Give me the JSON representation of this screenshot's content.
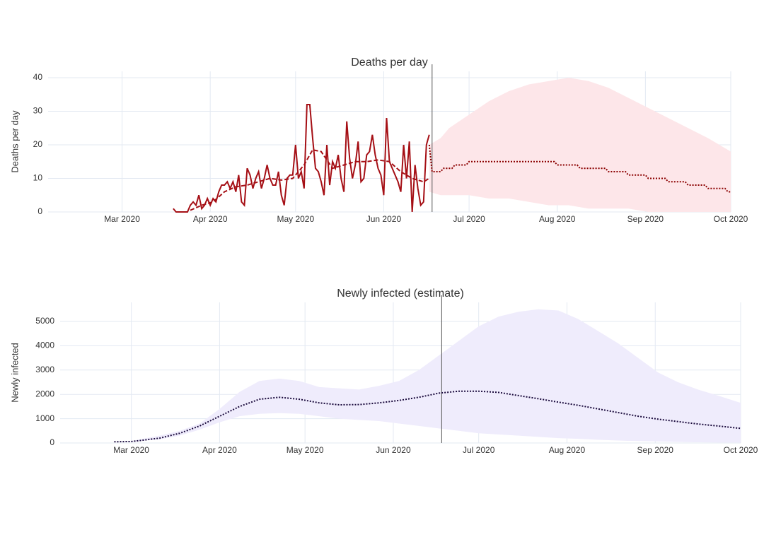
{
  "chart_data": [
    {
      "type": "line",
      "title": "Deaths per day",
      "y_label": "Deaths per day",
      "xlim": [
        34,
        274
      ],
      "xticks": [
        {
          "value": 60,
          "label": "Mar 2020"
        },
        {
          "value": 91,
          "label": "Apr 2020"
        },
        {
          "value": 121,
          "label": "May 2020"
        },
        {
          "value": 152,
          "label": "Jun 2020"
        },
        {
          "value": 182,
          "label": "Jul 2020"
        },
        {
          "value": 213,
          "label": "Aug 2020"
        },
        {
          "value": 244,
          "label": "Sep 2020"
        },
        {
          "value": 274,
          "label": "Oct 2020"
        }
      ],
      "ylim": [
        0,
        41.9
      ],
      "yticks": [
        0,
        10,
        20,
        30,
        40
      ],
      "grid": true,
      "vline": 169,
      "vline_color": "#555555",
      "band": {
        "color": "#fde6e9",
        "x": [
          168,
          172,
          175,
          182,
          189,
          196,
          203,
          210,
          217,
          224,
          231,
          238,
          245,
          252,
          259,
          266,
          274
        ],
        "lower": [
          6,
          5,
          5,
          5,
          4,
          4,
          3,
          2,
          2,
          1,
          1,
          1,
          0,
          0,
          0,
          0,
          0
        ],
        "upper": [
          20,
          22,
          25,
          29,
          33,
          36,
          38,
          39,
          40,
          39,
          37,
          34,
          31,
          28,
          25,
          22,
          18
        ]
      },
      "series": [
        {
          "color": "#a50f15",
          "style": "solid",
          "x": [
            78,
            79,
            80,
            81,
            82,
            83,
            84,
            85,
            86,
            87,
            88,
            89,
            90,
            91,
            92,
            93,
            94,
            95,
            96,
            97,
            98,
            99,
            100,
            101,
            102,
            103,
            104,
            105,
            106,
            107,
            108,
            109,
            110,
            111,
            112,
            113,
            114,
            115,
            116,
            117,
            118,
            119,
            120,
            121,
            122,
            123,
            124,
            125,
            126,
            127,
            128,
            129,
            130,
            131,
            132,
            133,
            134,
            135,
            136,
            137,
            138,
            139,
            140,
            141,
            142,
            143,
            144,
            145,
            146,
            147,
            148,
            149,
            150,
            151,
            152,
            153,
            154,
            155,
            156,
            157,
            158,
            159,
            160,
            161,
            162,
            163,
            164,
            165,
            166,
            167,
            168
          ],
          "values": [
            1,
            0,
            0,
            0,
            0,
            0,
            2,
            3,
            2,
            5,
            1,
            2,
            4,
            2,
            4,
            3,
            6,
            8,
            8,
            9,
            7,
            9,
            6,
            11,
            3,
            2,
            13,
            11,
            7,
            10,
            12,
            7,
            10,
            14,
            10,
            8,
            8,
            12,
            5,
            2,
            10,
            11,
            11,
            20,
            10,
            12,
            7,
            32,
            32,
            22,
            13,
            12,
            9,
            5,
            20,
            8,
            15,
            13,
            17,
            10,
            6,
            27,
            16,
            10,
            14,
            21,
            9,
            10,
            17,
            18,
            23,
            17,
            13,
            11,
            5,
            28,
            15,
            13,
            11,
            9,
            6,
            20,
            10,
            21,
            0,
            14,
            7,
            2,
            3,
            20,
            23
          ]
        },
        {
          "color": "#a50f15",
          "style": "dash",
          "x": [
            84,
            88,
            92,
            96,
            100,
            104,
            108,
            112,
            116,
            120,
            124,
            127,
            130,
            134,
            138,
            142,
            146,
            150,
            154,
            158,
            162,
            166,
            168
          ],
          "values": [
            0.5,
            2,
            3,
            6,
            7.5,
            8,
            9,
            10,
            9.5,
            10,
            14,
            18.5,
            18,
            13,
            14,
            15,
            15,
            15.5,
            15,
            12,
            10,
            9,
            10
          ]
        },
        {
          "color": "#8b0000",
          "style": "dot",
          "x": [
            168,
            169,
            172,
            173,
            176,
            177,
            181,
            182,
            212,
            213,
            220,
            221,
            230,
            231,
            237,
            238,
            244,
            245,
            251,
            252,
            258,
            259,
            265,
            266,
            272,
            273,
            274
          ],
          "values": [
            20,
            12,
            12,
            13,
            13,
            14,
            14,
            15,
            15,
            14,
            14,
            13,
            13,
            12,
            12,
            11,
            11,
            10,
            10,
            9,
            9,
            8,
            8,
            7,
            7,
            6,
            6
          ]
        }
      ]
    },
    {
      "type": "line",
      "title": "Newly infected (estimate)",
      "y_label": "Newly infected",
      "xlim": [
        35,
        274
      ],
      "xticks": [
        {
          "value": 60,
          "label": "Mar 2020"
        },
        {
          "value": 91,
          "label": "Apr 2020"
        },
        {
          "value": 121,
          "label": "May 2020"
        },
        {
          "value": 152,
          "label": "Jun 2020"
        },
        {
          "value": 182,
          "label": "Jul 2020"
        },
        {
          "value": 213,
          "label": "Aug 2020"
        },
        {
          "value": 244,
          "label": "Sep 2020"
        },
        {
          "value": 274,
          "label": "Oct 2020"
        }
      ],
      "ylim": [
        0,
        5785
      ],
      "yticks": [
        0,
        1000,
        2000,
        3000,
        4000,
        5000
      ],
      "grid": true,
      "vline": 169,
      "vline_color": "#555555",
      "band": {
        "color": "#efecfc",
        "x": [
          54,
          60,
          63,
          70,
          77,
          84,
          91,
          98,
          105,
          112,
          119,
          126,
          133,
          140,
          147,
          154,
          161,
          168,
          175,
          182,
          189,
          196,
          203,
          210,
          217,
          224,
          231,
          238,
          245,
          252,
          259,
          266,
          274
        ],
        "lower": [
          50,
          50,
          80,
          150,
          300,
          550,
          850,
          1100,
          1200,
          1230,
          1200,
          1100,
          1000,
          950,
          900,
          800,
          700,
          600,
          500,
          400,
          350,
          300,
          250,
          200,
          170,
          130,
          100,
          80,
          60,
          40,
          30,
          20,
          20
        ],
        "upper": [
          50,
          70,
          150,
          300,
          500,
          800,
          1400,
          2100,
          2550,
          2650,
          2550,
          2300,
          2250,
          2200,
          2350,
          2550,
          3000,
          3600,
          4200,
          4800,
          5200,
          5400,
          5500,
          5450,
          5100,
          4600,
          4100,
          3500,
          2900,
          2500,
          2200,
          1950,
          1650
        ]
      },
      "series": [
        {
          "color": "#1a0a3c",
          "style": "dot",
          "x": [
            54,
            60,
            63,
            70,
            77,
            84,
            91,
            98,
            105,
            112,
            119,
            126,
            133,
            140,
            147,
            154,
            161,
            168,
            175,
            182,
            189,
            196,
            203,
            210,
            217,
            224,
            231,
            238,
            245,
            252,
            259,
            266,
            274
          ],
          "values": [
            50,
            60,
            100,
            200,
            400,
            700,
            1100,
            1500,
            1800,
            1880,
            1800,
            1650,
            1570,
            1580,
            1650,
            1750,
            1880,
            2050,
            2130,
            2130,
            2080,
            1950,
            1820,
            1680,
            1550,
            1400,
            1250,
            1100,
            980,
            880,
            780,
            700,
            600
          ]
        }
      ]
    }
  ]
}
